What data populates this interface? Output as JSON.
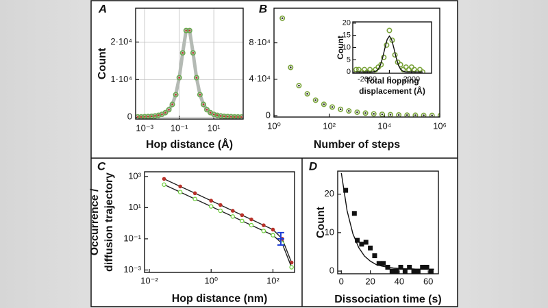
{
  "chart_data": [
    {
      "type": "scatter",
      "panel": "A",
      "xlabel": "Hop distance (Å)",
      "ylabel": "Count",
      "xscale": "log",
      "grid": true,
      "xlim": [
        0.0003,
        500
      ],
      "ylim": [
        -500,
        29000
      ],
      "xticks": [
        {
          "value": 0.001,
          "label": "10⁻³"
        },
        {
          "value": 0.1,
          "label": "10⁻¹"
        },
        {
          "value": 10,
          "label": "10¹"
        }
      ],
      "yticks": [
        0,
        {
          "value": 10000,
          "label": "1·10⁴"
        },
        {
          "value": 20000,
          "label": "2·10⁴"
        }
      ],
      "series": [
        {
          "color": "#6aa84f",
          "center_color": "#c0392b",
          "line_color": "#b4bab4",
          "marker": "circle",
          "x": [
            0.000398,
            0.000631,
            0.001,
            0.00158,
            0.00251,
            0.00398,
            0.00631,
            0.01,
            0.0158,
            0.0251,
            0.0398,
            0.0631,
            0.1,
            0.158,
            0.251,
            0.398,
            0.631,
            1,
            1.58,
            2.51,
            3.98,
            6.31,
            10,
            15.8,
            25.1,
            39.8,
            63.1,
            100,
            158,
            251,
            398
          ],
          "values": [
            73,
            95,
            127,
            172,
            240,
            343,
            504,
            767,
            1212,
            1993,
            3409,
            6000,
            10526,
            17120,
            23060,
            23060,
            17120,
            10526,
            6000,
            3409,
            1993,
            1212,
            767,
            504,
            343,
            240,
            172,
            127,
            95,
            73,
            56
          ]
        }
      ]
    },
    {
      "type": "scatter",
      "panel": "B",
      "xlabel": "Number of steps",
      "xscale": "log",
      "xlim": [
        1,
        1000000
      ],
      "ylim": [
        -1500,
        118000
      ],
      "xticks": [
        {
          "value": 1,
          "label": "10⁰"
        },
        {
          "value": 100,
          "label": "10²"
        },
        {
          "value": 10000,
          "label": "10⁴"
        },
        {
          "value": 1000000,
          "label": "10⁶"
        }
      ],
      "yticks": [
        0,
        {
          "value": 40000,
          "label": "4·10⁴"
        },
        {
          "value": 80000,
          "label": "8·10⁴"
        }
      ],
      "series": [
        {
          "color": "#7aa33a",
          "center_color": "#333333",
          "marker": "circle",
          "x": [
            2,
            4,
            8,
            16,
            32,
            64,
            128,
            256,
            512,
            1024,
            2048,
            4096,
            8192,
            16384,
            32768,
            65536,
            131072,
            262144,
            524288,
            1048576
          ],
          "values": [
            107000,
            53000,
            33000,
            24000,
            17000,
            12500,
            9500,
            7000,
            5200,
            3800,
            2800,
            2000,
            1500,
            1100,
            800,
            600,
            450,
            320,
            240,
            180
          ]
        }
      ]
    },
    {
      "type": "scatter",
      "xlabel": [
        "Total hopping",
        "displacement (Å)"
      ],
      "ylabel": "Count",
      "xlim": [
        -3300,
        3800
      ],
      "ylim": [
        -0.5,
        20.5
      ],
      "xticks": [
        -2000,
        0,
        2000
      ],
      "yticks": [
        0,
        5,
        10,
        15,
        20
      ],
      "series": [
        {
          "color": "#7aa33a",
          "marker": "circle",
          "x": [
            -3000,
            -2750,
            -2500,
            -2250,
            -2000,
            -1750,
            -1500,
            -1250,
            -1000,
            -750,
            -500,
            -250,
            0,
            250,
            500,
            750,
            1000,
            1250,
            1500,
            1750,
            2000,
            2250,
            2500,
            2750,
            3000
          ],
          "values": [
            1,
            1,
            0,
            1,
            0,
            1,
            0,
            1,
            2,
            3,
            6,
            11,
            17,
            13,
            7,
            4,
            3,
            1,
            2,
            1,
            2,
            1,
            0,
            1,
            0
          ]
        },
        {
          "color": "#111111",
          "marker": "none",
          "line_color": "#111111",
          "x": [
            -3000,
            -2800,
            -2600,
            -2400,
            -2200,
            -2000,
            -1800,
            -1600,
            -1400,
            -1200,
            -1000,
            -800,
            -600,
            -400,
            -200,
            0,
            200,
            400,
            600,
            800,
            1000,
            1200,
            1400,
            1600,
            1800,
            2000,
            2200,
            2400,
            2600,
            2800,
            3000
          ],
          "values": [
            0,
            0,
            0,
            0,
            0,
            0,
            0,
            0,
            0.1,
            0.4,
            1.2,
            3.0,
            6.0,
            9.9,
            13.3,
            14.7,
            13.3,
            9.9,
            6.0,
            3.0,
            1.2,
            0.4,
            0.1,
            0,
            0,
            0,
            0,
            0,
            0,
            0,
            0
          ]
        }
      ]
    },
    {
      "type": "line",
      "panel": "C",
      "xlabel": "Hop distance (nm)",
      "ylabel": [
        "Occurrence /",
        "diffusion trajectory"
      ],
      "xscale": "log",
      "yscale": "log",
      "xlim": [
        0.007,
        500
      ],
      "ylim": [
        0.0007,
        2000
      ],
      "xticks": [
        {
          "value": 0.01,
          "label": "10⁻²"
        },
        {
          "value": 1,
          "label": "10⁰"
        },
        {
          "value": 100,
          "label": "10²"
        }
      ],
      "yticks": [
        {
          "value": 0.001,
          "label": "10⁻³"
        },
        {
          "value": 0.1,
          "label": "10⁻¹"
        },
        {
          "value": 10,
          "label": "10¹"
        },
        {
          "value": 1000,
          "label": "10³"
        }
      ],
      "series": [
        {
          "color": "#b8322a",
          "line_color": "#222222",
          "marker": "dot",
          "x": [
            0.03,
            0.1,
            0.3,
            1,
            2,
            5,
            10,
            20,
            50,
            100,
            200,
            400
          ],
          "values": [
            700,
            230,
            84,
            28,
            14.8,
            6.3,
            3.3,
            1.76,
            0.74,
            0.39,
            0.1,
            0.003
          ]
        },
        {
          "color": "#6fcf3f",
          "line_color": "#222222",
          "marker": "ring",
          "x": [
            0.03,
            0.1,
            0.3,
            1,
            2,
            5,
            10,
            20,
            50,
            100,
            200,
            400
          ],
          "values": [
            300,
            100,
            36,
            12,
            6.3,
            2.7,
            1.4,
            0.75,
            0.32,
            0.17,
            0.05,
            0.0015
          ]
        },
        {
          "color": "#1f3fd6",
          "marker": "errorbar",
          "x": [
            180
          ],
          "values": [
            0.1
          ],
          "lower": [
            0.04
          ],
          "upper": [
            0.25
          ]
        }
      ]
    },
    {
      "type": "scatter",
      "panel": "D",
      "xlabel": "Dissociation time (s)",
      "ylabel": "Count",
      "xlim": [
        -2.5,
        67
      ],
      "ylim": [
        -0.7,
        26
      ],
      "xticks": [
        0,
        20,
        40,
        60
      ],
      "yticks": [
        0,
        10,
        20
      ],
      "series": [
        {
          "color": "#111111",
          "marker": "square",
          "x": [
            3,
            9,
            11,
            14,
            17,
            20,
            23,
            26,
            29,
            32,
            35,
            38,
            41,
            44,
            47,
            50,
            53,
            56,
            59,
            62
          ],
          "values": [
            21,
            15,
            8,
            7,
            7.5,
            6,
            4,
            2,
            2,
            1,
            0,
            0,
            1,
            0,
            1,
            0,
            0,
            1,
            1,
            0
          ]
        },
        {
          "color": "#111111",
          "marker": "none",
          "line_color": "#111111",
          "x": [
            0,
            4,
            8,
            12,
            16,
            20,
            24,
            28,
            32,
            36,
            40,
            44,
            48,
            52,
            56,
            60,
            64
          ],
          "values": [
            25.5,
            15.7,
            9.7,
            6.1,
            3.9,
            2.6,
            1.7,
            1.3,
            1.0,
            0.8,
            0.7,
            0.6,
            0.6,
            0.5,
            0.5,
            0.5,
            0.5
          ]
        }
      ]
    }
  ]
}
